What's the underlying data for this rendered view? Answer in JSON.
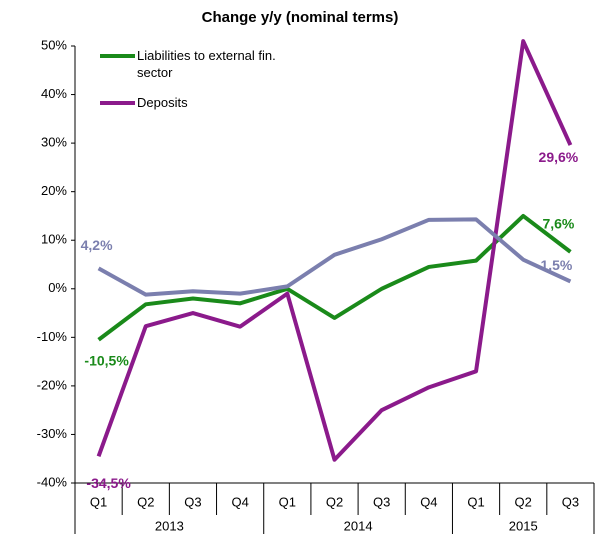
{
  "chart_data": {
    "type": "line",
    "title": "Change y/y (nominal terms)",
    "categories": [
      "Q1",
      "Q2",
      "Q3",
      "Q4",
      "Q1",
      "Q2",
      "Q3",
      "Q4",
      "Q1",
      "Q2",
      "Q3"
    ],
    "groups": [
      {
        "label": "2013",
        "span": 4
      },
      {
        "label": "2014",
        "span": 4
      },
      {
        "label": "2015",
        "span": 3
      }
    ],
    "ylim": [
      -40,
      50
    ],
    "yticks": [
      {
        "value": -40,
        "label": "-40%"
      },
      {
        "value": -30,
        "label": "-30%"
      },
      {
        "value": -20,
        "label": "-20%"
      },
      {
        "value": -10,
        "label": "-10%"
      },
      {
        "value": 0,
        "label": "0%"
      },
      {
        "value": 10,
        "label": "10%"
      },
      {
        "value": 20,
        "label": "20%"
      },
      {
        "value": 30,
        "label": "30%"
      },
      {
        "value": 40,
        "label": "40%"
      },
      {
        "value": 50,
        "label": "50%"
      }
    ],
    "grid": false,
    "series": [
      {
        "name": "Liabilities to external fin. sector",
        "color": "#1a8a1a",
        "values": [
          -10.5,
          -3.2,
          -2,
          -3,
          0,
          -6,
          0,
          4.5,
          5.8,
          15,
          7.6
        ],
        "value_labels": [
          "-10,5%",
          null,
          null,
          null,
          null,
          null,
          null,
          null,
          null,
          null,
          "7,6%"
        ]
      },
      {
        "name": "Deposits",
        "color": "#8b1a8b",
        "values": [
          -34.5,
          -7.7,
          -5,
          -7.8,
          -1,
          -35.2,
          -25,
          -20.3,
          -17,
          51,
          29.6
        ],
        "value_labels": [
          "-34,5%",
          null,
          null,
          null,
          null,
          null,
          null,
          null,
          null,
          null,
          "29,6%"
        ]
      },
      {
        "color": "#7b7fae",
        "values": [
          4.2,
          -1.2,
          -0.5,
          -1,
          0.5,
          7,
          10.2,
          14.2,
          14.3,
          6,
          1.5
        ],
        "value_labels": [
          "4,2%",
          null,
          null,
          null,
          null,
          null,
          null,
          null,
          null,
          null,
          "1,5%"
        ]
      }
    ]
  }
}
